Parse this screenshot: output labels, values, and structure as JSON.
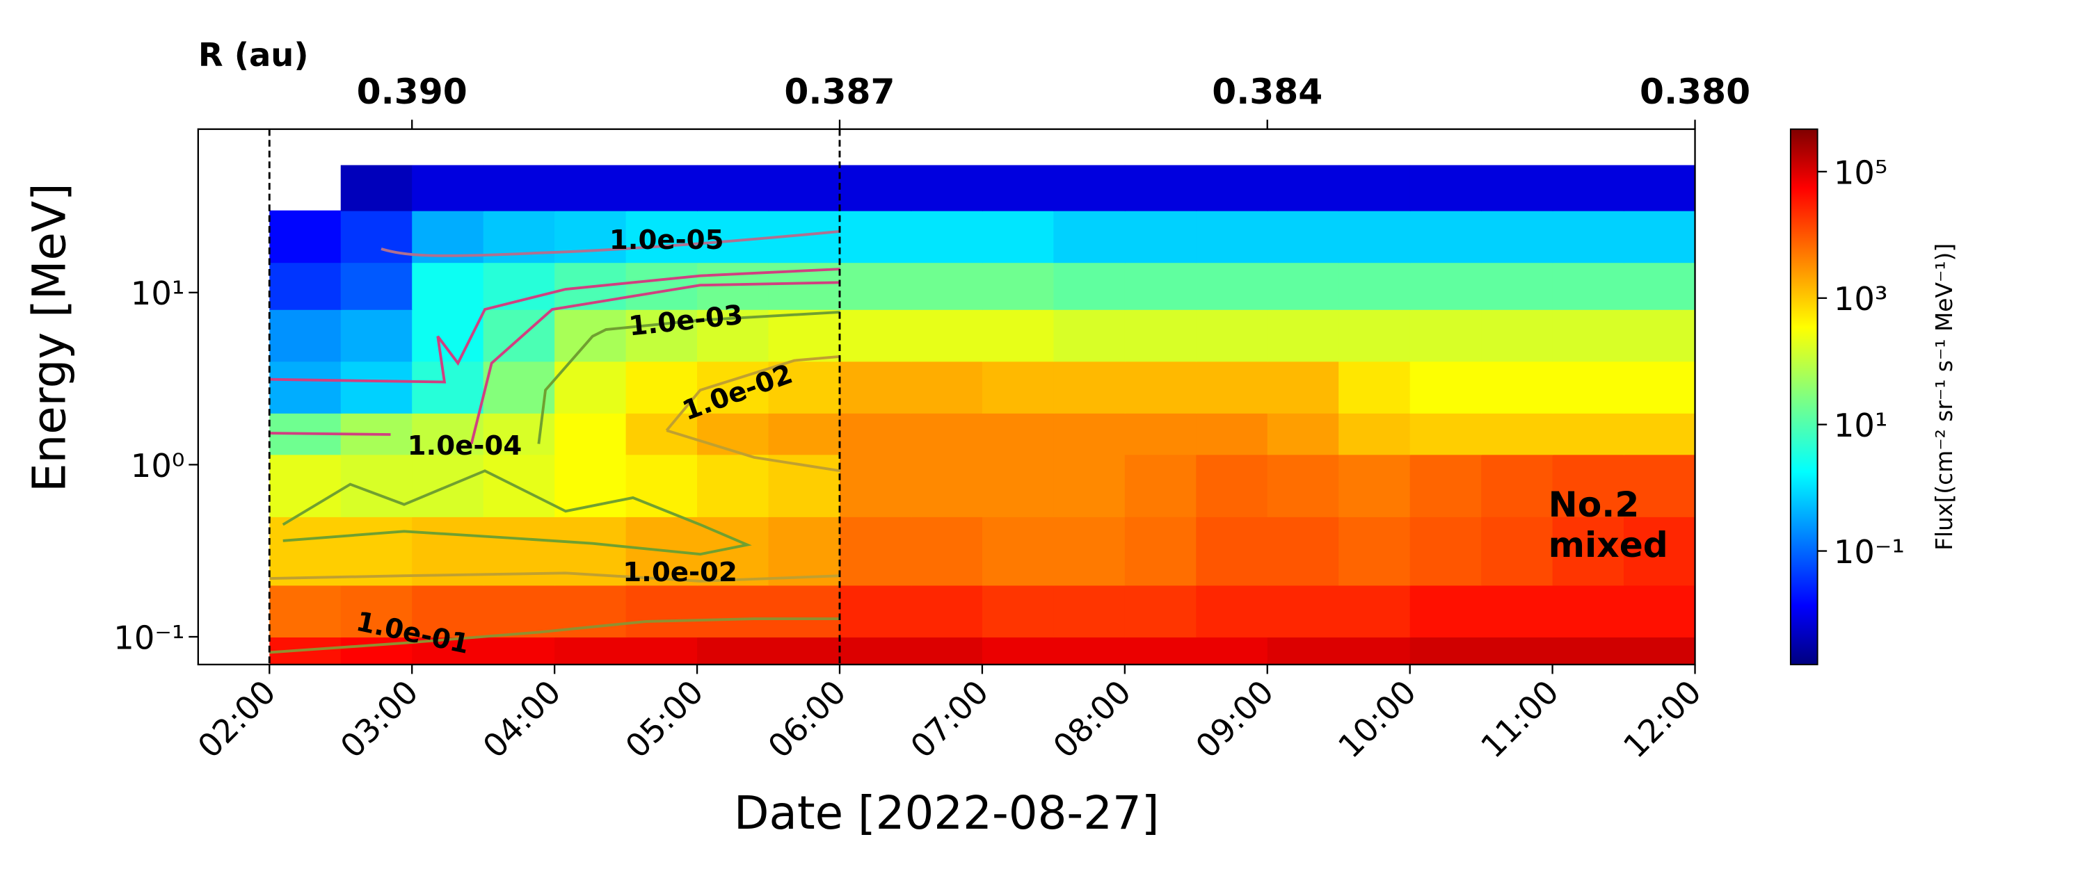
{
  "chart_data": {
    "type": "heatmap",
    "xlabel": "Date [2022-08-27]",
    "ylabel": "Energy [MeV]",
    "colorbar_label": "Flux[(cm⁻² sr⁻¹ s⁻¹ MeV⁻¹)]",
    "top_axis_label": "R (au)",
    "top_ticks": [
      {
        "value": 0.39,
        "label": "0.390",
        "x": 3
      },
      {
        "value": 0.387,
        "label": "0.387",
        "x": 6
      },
      {
        "value": 0.384,
        "label": "0.384",
        "x": 9
      },
      {
        "value": 0.38,
        "label": "0.380",
        "x": 12
      }
    ],
    "xlim": [
      1.5,
      12
    ],
    "xticks": [
      {
        "value": 2,
        "label": "02:00"
      },
      {
        "value": 3,
        "label": "03:00"
      },
      {
        "value": 4,
        "label": "04:00"
      },
      {
        "value": 5,
        "label": "05:00"
      },
      {
        "value": 6,
        "label": "06:00"
      },
      {
        "value": 7,
        "label": "07:00"
      },
      {
        "value": 8,
        "label": "08:00"
      },
      {
        "value": 9,
        "label": "09:00"
      },
      {
        "value": 10,
        "label": "10:00"
      },
      {
        "value": 11,
        "label": "11:00"
      },
      {
        "value": 12,
        "label": "12:00"
      }
    ],
    "ylim": [
      0.069,
      89
    ],
    "ylog": true,
    "yticks": [
      {
        "value": 0.1,
        "label": "10⁻¹"
      },
      {
        "value": 1,
        "label": "10⁰"
      },
      {
        "value": 10,
        "label": "10¹"
      }
    ],
    "zlim": [
      0.0016,
      470000
    ],
    "zlog": true,
    "zticks": [
      {
        "value": 0.1,
        "label": "10⁻¹"
      },
      {
        "value": 10,
        "label": "10¹"
      },
      {
        "value": 1000,
        "label": "10³"
      },
      {
        "value": 100000,
        "label": "10⁵"
      }
    ],
    "colormap": "jet",
    "vlines": [
      2,
      6
    ],
    "x_edges": [
      2,
      2.5,
      3,
      3.5,
      4,
      4.5,
      5,
      5.5,
      6,
      6.5,
      7,
      7.5,
      8,
      8.5,
      9,
      9.5,
      10,
      10.5,
      11,
      11.5,
      12
    ],
    "y_edges": [
      0.07,
      0.1,
      0.2,
      0.5,
      1.15,
      2,
      4,
      8,
      15,
      30,
      55
    ],
    "z": [
      [
        30000,
        40000,
        50000,
        50000,
        60000,
        60000,
        80000,
        80000,
        80000,
        80000,
        60000,
        60000,
        60000,
        60000,
        80000,
        80000,
        100000,
        100000,
        100000,
        100000
      ],
      [
        5000,
        6000,
        8000,
        8000,
        8000,
        10000,
        10000,
        10000,
        20000,
        20000,
        15000,
        15000,
        15000,
        20000,
        20000,
        20000,
        30000,
        30000,
        30000,
        30000
      ],
      [
        800,
        800,
        1000,
        1000,
        1000,
        1500,
        1500,
        2000,
        5000,
        5000,
        4000,
        4000,
        5000,
        8000,
        8000,
        6000,
        8000,
        10000,
        15000,
        20000
      ],
      [
        200,
        150,
        150,
        200,
        300,
        400,
        600,
        800,
        3000,
        3000,
        3000,
        3000,
        4000,
        6000,
        5000,
        4000,
        6000,
        8000,
        10000,
        10000
      ],
      [
        20,
        60,
        100,
        150,
        300,
        800,
        1500,
        2000,
        3000,
        3000,
        3000,
        3000,
        3000,
        3000,
        2000,
        1000,
        800,
        800,
        800,
        800
      ],
      [
        0.5,
        1,
        5,
        30,
        200,
        400,
        600,
        800,
        1500,
        1500,
        1200,
        1200,
        1200,
        1200,
        1200,
        500,
        300,
        300,
        300,
        300
      ],
      [
        0.3,
        0.5,
        3,
        10,
        60,
        100,
        150,
        200,
        200,
        200,
        200,
        150,
        150,
        150,
        150,
        150,
        150,
        150,
        150,
        150
      ],
      [
        0.05,
        0.1,
        3,
        5,
        10,
        15,
        20,
        20,
        20,
        20,
        20,
        15,
        15,
        15,
        15,
        15,
        15,
        15,
        15,
        15
      ],
      [
        0.02,
        0.05,
        0.5,
        0.8,
        1,
        1.5,
        1.5,
        1.5,
        1.5,
        1.5,
        1.5,
        1,
        1,
        1,
        1,
        1,
        1,
        1,
        1,
        1
      ],
      [
        null,
        0.005,
        0.01,
        0.01,
        0.01,
        0.01,
        0.01,
        0.01,
        0.01,
        0.01,
        0.01,
        0.01,
        0.01,
        0.01,
        0.01,
        0.01,
        0.01,
        0.01,
        0.01,
        0.01
      ]
    ],
    "annotations": [
      "1.0e-05",
      "1.0e-03",
      "1.0e-02",
      "1.0e-04",
      "1.0e-02",
      "1.0e-01",
      "No.2",
      "mixed"
    ]
  }
}
